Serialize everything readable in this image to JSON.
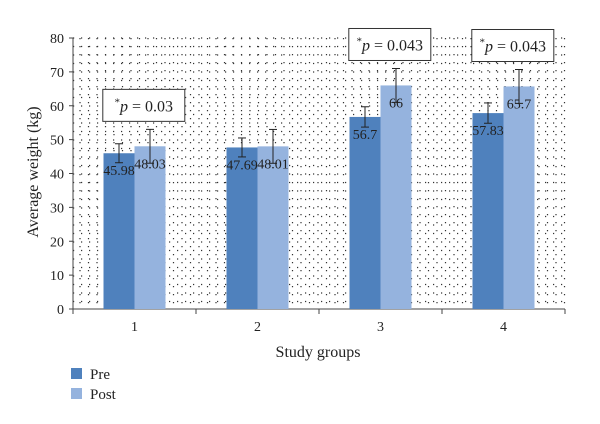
{
  "chart_data": {
    "type": "bar",
    "title": "",
    "xlabel": "Study groups",
    "ylabel": "Average weight (kg)",
    "ylim": [
      0,
      80
    ],
    "yticks": [
      0,
      10,
      20,
      30,
      40,
      50,
      60,
      70,
      80
    ],
    "categories": [
      "1",
      "2",
      "3",
      "4"
    ],
    "grid": "dotted",
    "legend_position": "bottom-left",
    "series": [
      {
        "name": "Pre",
        "color": "#4f81bd",
        "values": [
          45.98,
          47.69,
          56.7,
          57.83
        ],
        "labels": [
          "45.98",
          "47.69",
          "56.7",
          "57.83"
        ],
        "error": [
          2.8,
          2.8,
          3.0,
          3.0
        ]
      },
      {
        "name": "Post",
        "color": "#95b3de",
        "values": [
          48.03,
          48.01,
          66,
          65.7
        ],
        "labels": [
          "48.03",
          "48.01",
          "66",
          "65.7"
        ],
        "error": [
          5.0,
          5.0,
          5.0,
          5.0
        ]
      }
    ],
    "annotations": [
      {
        "category": "1",
        "star": "*",
        "p": "p",
        "rest": " = 0.03"
      },
      {
        "category": "3",
        "star": "*",
        "p": "p",
        "rest": " = 0.043"
      },
      {
        "category": "4",
        "star": "*",
        "p": "p",
        "rest": " = 0.043"
      }
    ]
  }
}
